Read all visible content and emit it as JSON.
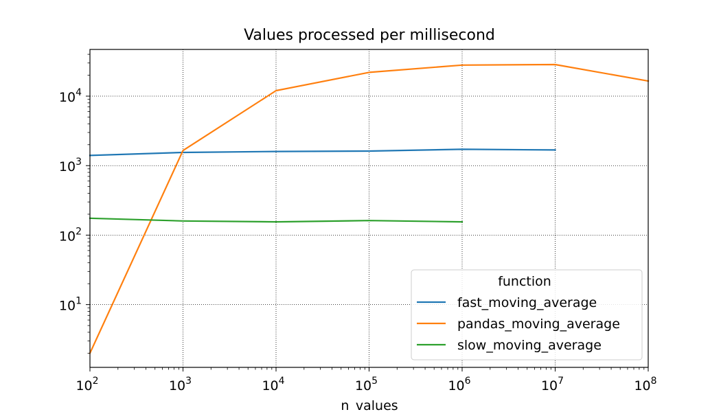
{
  "chart_data": {
    "type": "line",
    "title": "Values processed per millisecond",
    "xlabel": "n_values",
    "ylabel": "",
    "xscale": "log",
    "yscale": "log",
    "xlim": [
      100,
      100000000
    ],
    "ylim": [
      1.25,
      47000
    ],
    "x_ticks": [
      {
        "value": 100,
        "base": "10",
        "exp": "2"
      },
      {
        "value": 1000,
        "base": "10",
        "exp": "3"
      },
      {
        "value": 10000,
        "base": "10",
        "exp": "4"
      },
      {
        "value": 100000,
        "base": "10",
        "exp": "5"
      },
      {
        "value": 1000000,
        "base": "10",
        "exp": "6"
      },
      {
        "value": 10000000,
        "base": "10",
        "exp": "7"
      },
      {
        "value": 100000000,
        "base": "10",
        "exp": "8"
      }
    ],
    "y_ticks": [
      {
        "value": 10,
        "base": "10",
        "exp": "1"
      },
      {
        "value": 100,
        "base": "10",
        "exp": "2"
      },
      {
        "value": 1000,
        "base": "10",
        "exp": "3"
      },
      {
        "value": 10000,
        "base": "10",
        "exp": "4"
      }
    ],
    "grid": true,
    "legend": {
      "title": "function",
      "placement": "lower-right"
    },
    "series": [
      {
        "name": "fast_moving_average",
        "color": "#1f77b4",
        "x": [
          100,
          1000,
          10000,
          100000,
          1000000,
          10000000
        ],
        "y": [
          1400,
          1550,
          1600,
          1620,
          1720,
          1680
        ]
      },
      {
        "name": "pandas_moving_average",
        "color": "#ff7f0e",
        "x": [
          100,
          1000,
          10000,
          100000,
          1000000,
          10000000,
          100000000
        ],
        "y": [
          2,
          1650,
          12000,
          22000,
          28000,
          28500,
          16500
        ]
      },
      {
        "name": "slow_moving_average",
        "color": "#2ca02c",
        "x": [
          100,
          1000,
          10000,
          100000,
          1000000
        ],
        "y": [
          175,
          160,
          155,
          162,
          155
        ]
      }
    ]
  }
}
